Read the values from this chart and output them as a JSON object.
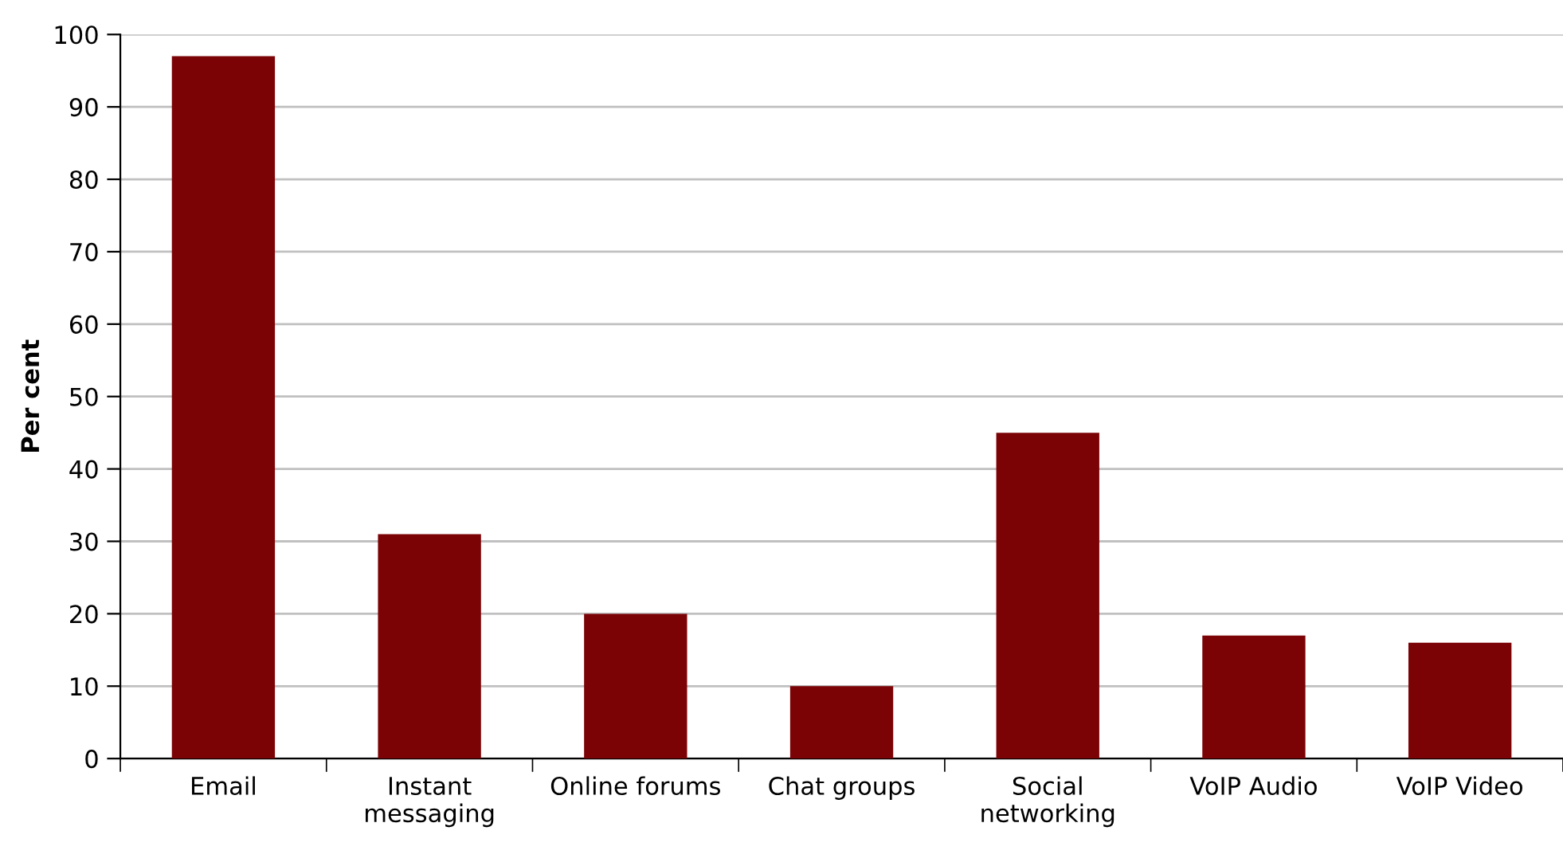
{
  "chart_data": {
    "type": "bar",
    "ylabel": "Per cent",
    "categories": [
      "Email",
      "Instant\nmessaging",
      "Online forums",
      "Chat groups",
      "Social\nnetworking",
      "VoIP Audio",
      "VoIP Video"
    ],
    "values": [
      97,
      31,
      20,
      10,
      45,
      17,
      16
    ],
    "color": "#7b0306",
    "ylim": [
      0,
      100
    ],
    "yticks": [
      0,
      10,
      20,
      30,
      40,
      50,
      60,
      70,
      80,
      90,
      100
    ],
    "grid": "y"
  }
}
